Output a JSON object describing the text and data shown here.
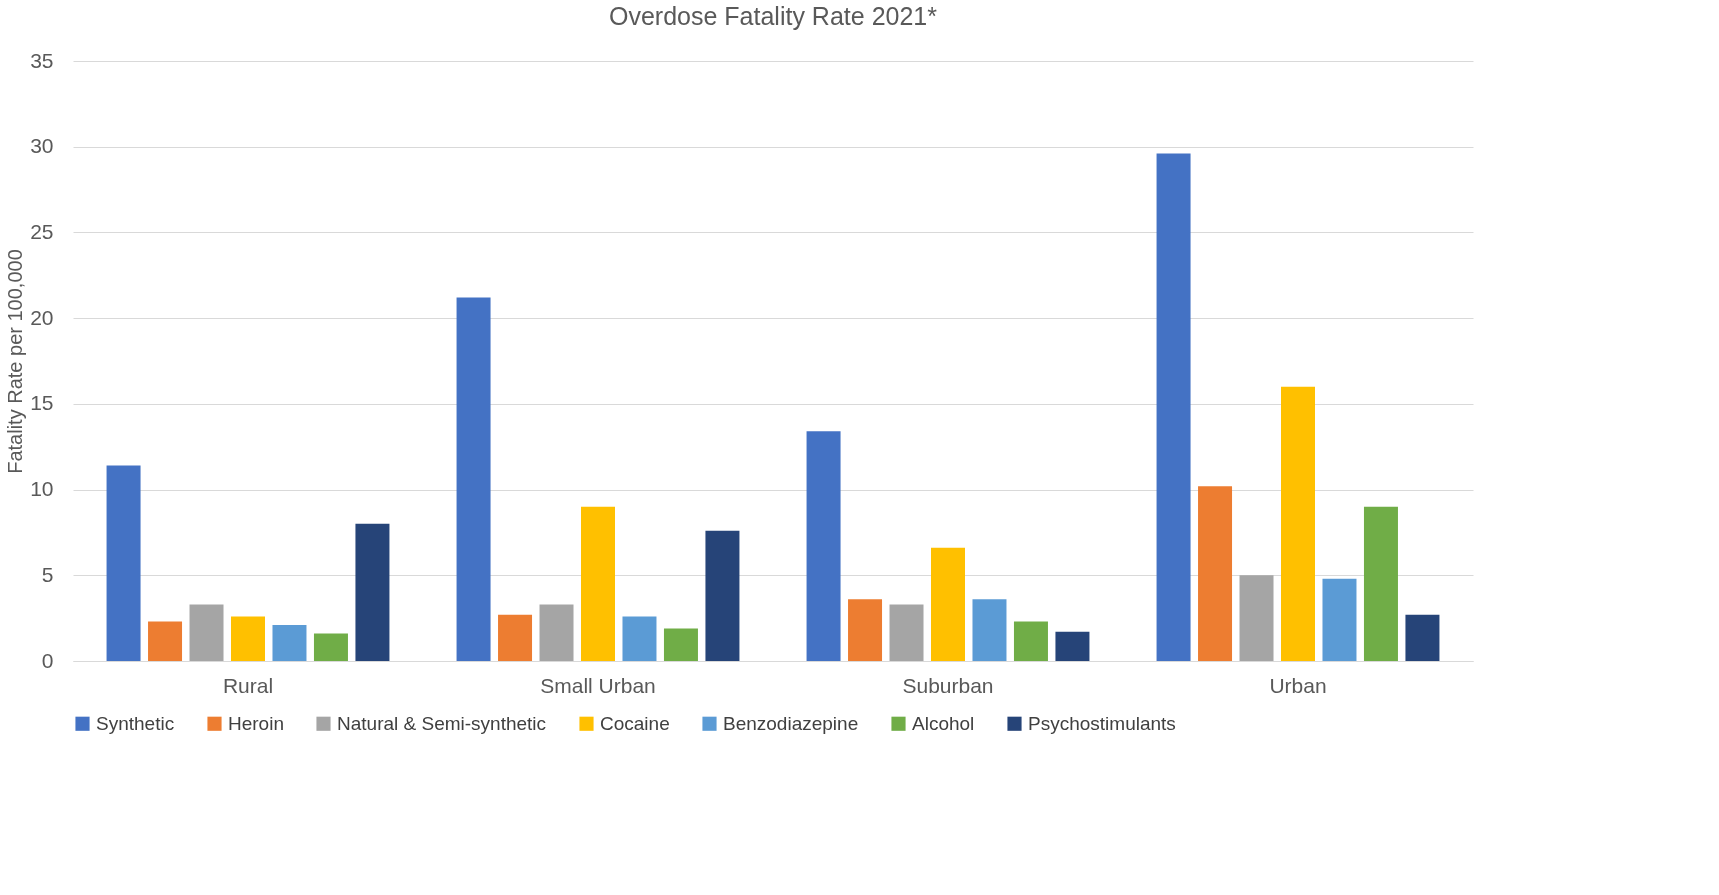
{
  "chart_data": {
    "type": "bar",
    "title": "Overdose Fatality Rate 2021*",
    "ylabel": "Fatality Rate per 100,000",
    "categories": [
      "Rural",
      "Small Urban",
      "Suburban",
      "Urban"
    ],
    "series": [
      {
        "name": "Synthetic",
        "color": "#4472c4",
        "values": [
          11.4,
          21.2,
          13.4,
          29.6
        ]
      },
      {
        "name": "Heroin",
        "color": "#ed7d31",
        "values": [
          2.3,
          2.7,
          3.6,
          10.2
        ]
      },
      {
        "name": "Natural & Semi-synthetic",
        "color": "#a5a5a5",
        "values": [
          3.3,
          3.3,
          3.3,
          5.0
        ]
      },
      {
        "name": "Cocaine",
        "color": "#ffc000",
        "values": [
          2.6,
          9.0,
          6.6,
          16.0
        ]
      },
      {
        "name": "Benzodiazepine",
        "color": "#5b9bd5",
        "values": [
          2.1,
          2.6,
          3.6,
          4.8
        ]
      },
      {
        "name": "Alcohol",
        "color": "#70ad47",
        "values": [
          1.6,
          1.9,
          2.3,
          9.0
        ]
      },
      {
        "name": "Psychostimulants",
        "color": "#264478",
        "values": [
          8.0,
          7.6,
          1.7,
          2.7
        ]
      }
    ],
    "ylim": [
      0,
      35
    ],
    "yticks": [
      0,
      5,
      10,
      15,
      20,
      25,
      30,
      35
    ],
    "grid": "y",
    "legend": "bottom"
  }
}
